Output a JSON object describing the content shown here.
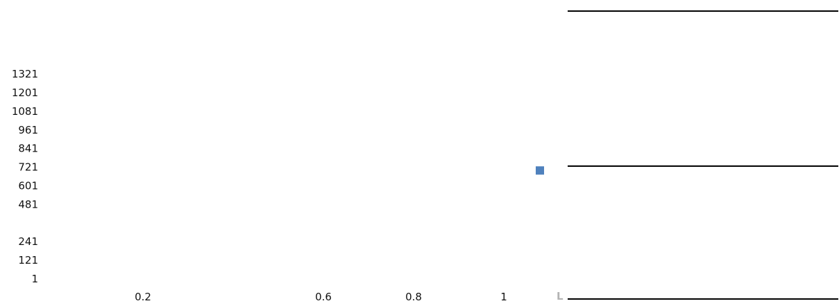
{
  "chart_data": {
    "type": "scatter",
    "title": "",
    "xlabel": "",
    "ylabel": "",
    "grid": false,
    "x_ticks": [
      "0.2",
      "0.6",
      "0.8",
      "1"
    ],
    "y_ticks": [
      "1",
      "121",
      "241",
      "481",
      "601",
      "721",
      "841",
      "961",
      "1081",
      "1201",
      "1321"
    ],
    "series": [
      {
        "color": "#4f81bd",
        "marker": "square",
        "points": [
          {
            "x": 1.08,
            "y": 700
          }
        ]
      }
    ],
    "legend": {
      "placement": "right",
      "letter": "L",
      "letter_color": "#b3b3b3",
      "line_color": "#000000"
    }
  }
}
